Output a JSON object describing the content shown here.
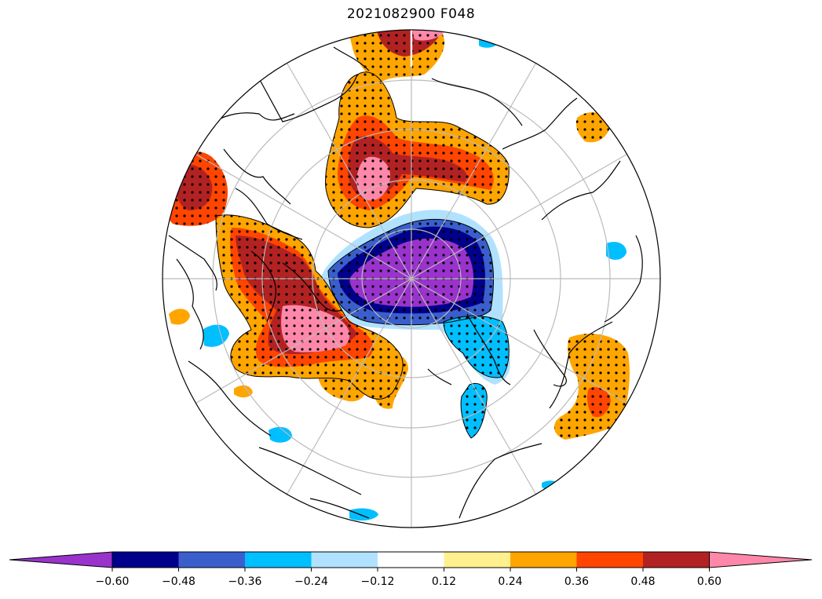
{
  "title": "2021082900 F048",
  "map": {
    "projection": "north-polar-stereographic",
    "features": [
      "coastlines",
      "graticule",
      "stippling-significance"
    ]
  },
  "colorbar": {
    "extend": "both",
    "bins": [
      {
        "color": "#9933cc"
      },
      {
        "color": "#00008b"
      },
      {
        "color": "#3a5fcd"
      },
      {
        "color": "#00bfff"
      },
      {
        "color": "#b0e2ff"
      },
      {
        "color": "#ffffff"
      },
      {
        "color": "#fff08f"
      },
      {
        "color": "#ffa500"
      },
      {
        "color": "#ff4500"
      },
      {
        "color": "#b22222"
      },
      {
        "color": "#ff88aa"
      }
    ],
    "ticks": [
      "−0.60",
      "−0.48",
      "−0.36",
      "−0.24",
      "−0.12",
      "0.12",
      "0.24",
      "0.36",
      "0.48",
      "0.60"
    ]
  }
}
